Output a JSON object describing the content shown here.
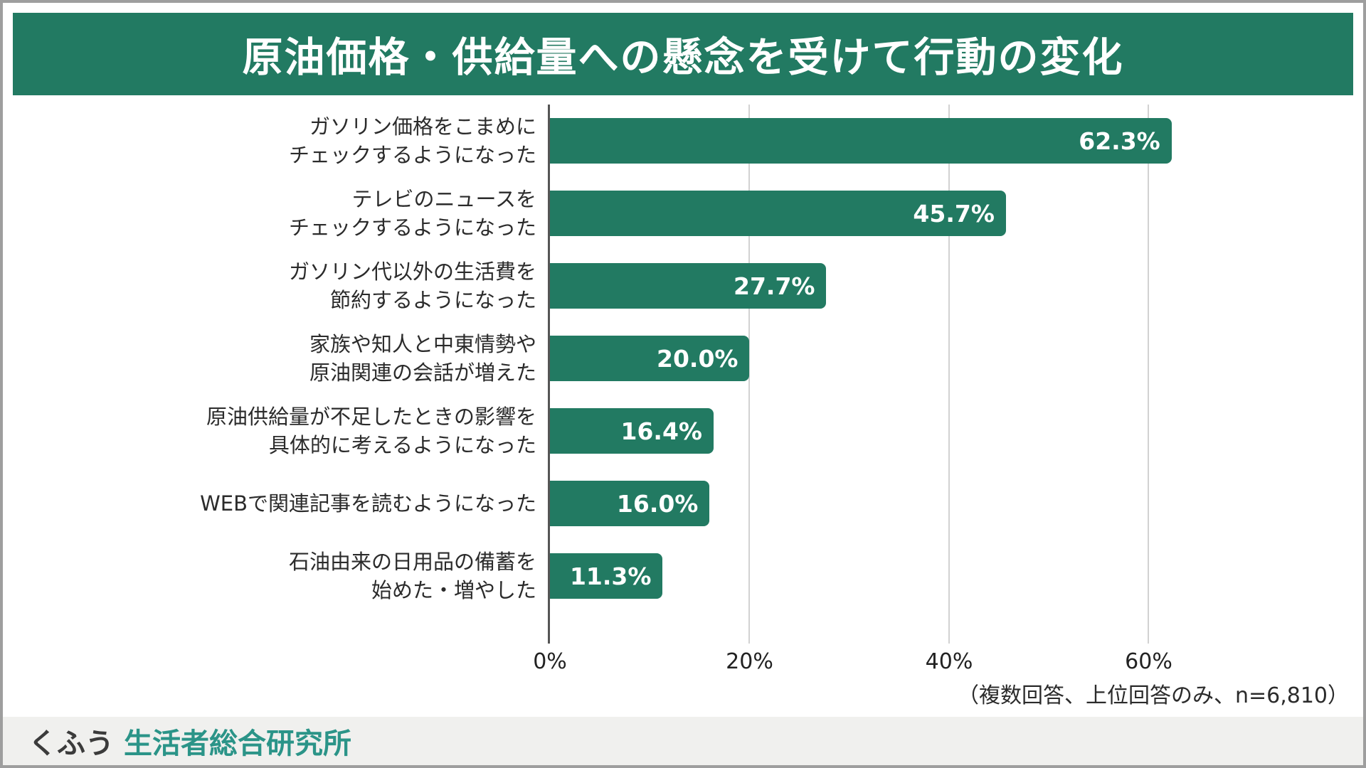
{
  "title": "原油価格・供給量への懸念を受けて行動の変化",
  "chart_data": {
    "type": "bar",
    "orientation": "horizontal",
    "title": "原油価格・供給量への懸念を受けて行動の変化",
    "categories": [
      "ガソリン価格をこまめに\nチェックするようになった",
      "テレビのニュースを\nチェックするようになった",
      "ガソリン代以外の生活費を\n節約するようになった",
      "家族や知人と中東情勢や\n原油関連の会話が増えた",
      "原油供給量が不足したときの影響を\n具体的に考えるようになった",
      "WEBで関連記事を読むようになった",
      "石油由来の日用品の備蓄を\n始めた・増やした"
    ],
    "values": [
      62.3,
      45.7,
      27.7,
      20.0,
      16.4,
      16.0,
      11.3
    ],
    "value_labels": [
      "62.3%",
      "45.7%",
      "27.7%",
      "20.0%",
      "16.4%",
      "16.0%",
      "11.3%"
    ],
    "x_ticks": [
      {
        "label": "0%",
        "value": 0
      },
      {
        "label": "20%",
        "value": 20
      },
      {
        "label": "40%",
        "value": 40
      },
      {
        "label": "60%",
        "value": 60
      }
    ],
    "xlim": [
      0,
      80.5
    ],
    "xlabel": "",
    "ylabel": "",
    "grid": "vertical-only",
    "legend": "none",
    "bar_color": "#227a62",
    "value_label_color": "#ffffff"
  },
  "footnote": "（複数回答、上位回答のみ、n=6,810）",
  "footer": {
    "brand_kufu": "くふう",
    "brand_institute": "生活者総合研究所"
  },
  "colors": {
    "accent_green": "#227a62",
    "logo_teal": "#2b9488",
    "title_text": "#ffffff",
    "body_text": "#2b2b2b",
    "gridline": "#d2d2d2",
    "footer_bg": "#f0f0ee"
  }
}
